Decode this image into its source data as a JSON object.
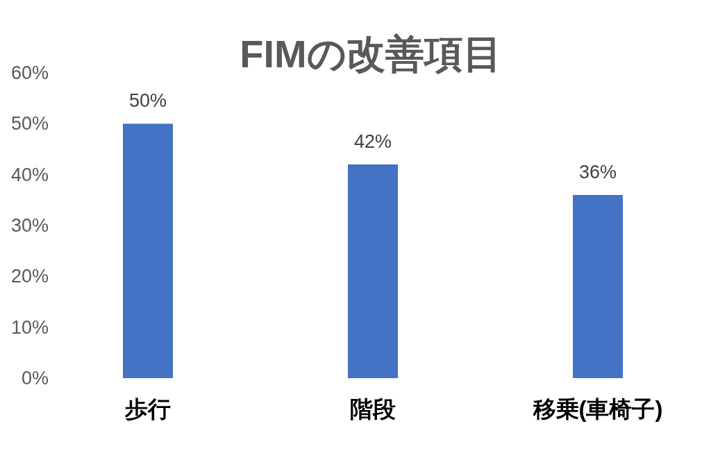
{
  "chart_data": {
    "type": "bar",
    "title": "FIMの改善項目",
    "categories": [
      "歩行",
      "階段",
      "移乗(車椅子)"
    ],
    "values": [
      50,
      42,
      36
    ],
    "value_labels": [
      "50%",
      "42%",
      "36%"
    ],
    "color": "#4472c4",
    "ylim": [
      0,
      60
    ],
    "yticks": [
      {
        "value": 0,
        "label": "0%"
      },
      {
        "value": 10,
        "label": "10%"
      },
      {
        "value": 20,
        "label": "20%"
      },
      {
        "value": 30,
        "label": "30%"
      },
      {
        "value": 40,
        "label": "40%"
      },
      {
        "value": 50,
        "label": "50%"
      },
      {
        "value": 60,
        "label": "60%"
      }
    ]
  }
}
